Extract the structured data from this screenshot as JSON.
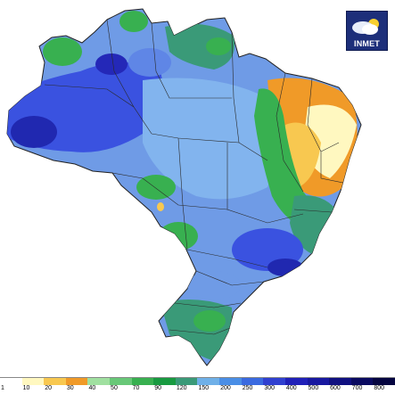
{
  "logo": {
    "text": "INMET"
  },
  "legend": {
    "labels": [
      "1",
      "10",
      "20",
      "30",
      "40",
      "50",
      "70",
      "90",
      "120",
      "150",
      "200",
      "250",
      "300",
      "400",
      "500",
      "600",
      "700",
      "800"
    ],
    "colors": [
      "#ffffff",
      "#fff8c0",
      "#f8c850",
      "#f09a28",
      "#a0e0a0",
      "#68c878",
      "#38b050",
      "#189a40",
      "#3a9a78",
      "#6fb0e8",
      "#4a8ee6",
      "#3a6ae0",
      "#3040d0",
      "#2020b8",
      "#1818a0",
      "#101080",
      "#0a0a60",
      "#050540"
    ]
  }
}
